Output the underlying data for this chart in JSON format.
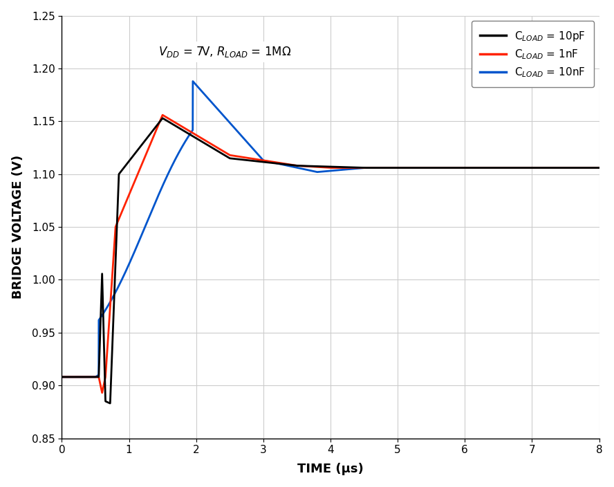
{
  "title_text": "V$_{DD}$ = 7V, R$_{LOAD}$ = 1MΩ",
  "xlabel": "TIME (μs)",
  "ylabel": "BRIDGE VOLTAGE (V)",
  "xlim": [
    0,
    8
  ],
  "ylim": [
    0.85,
    1.25
  ],
  "yticks": [
    0.85,
    0.9,
    0.95,
    1.0,
    1.05,
    1.1,
    1.15,
    1.2,
    1.25
  ],
  "xticks": [
    0,
    1,
    2,
    3,
    4,
    5,
    6,
    7,
    8
  ],
  "colors": {
    "black": "#000000",
    "red": "#FF2200",
    "blue": "#0055CC"
  },
  "legend": [
    {
      "label": "C$_{LOAD}$ = 10pF",
      "color": "#000000"
    },
    {
      "label": "C$_{LOAD}$ = 1nF",
      "color": "#FF2200"
    },
    {
      "label": "C$_{LOAD}$ = 10nF",
      "color": "#0055CC"
    }
  ],
  "steady_state": 1.106,
  "background": "#ffffff"
}
